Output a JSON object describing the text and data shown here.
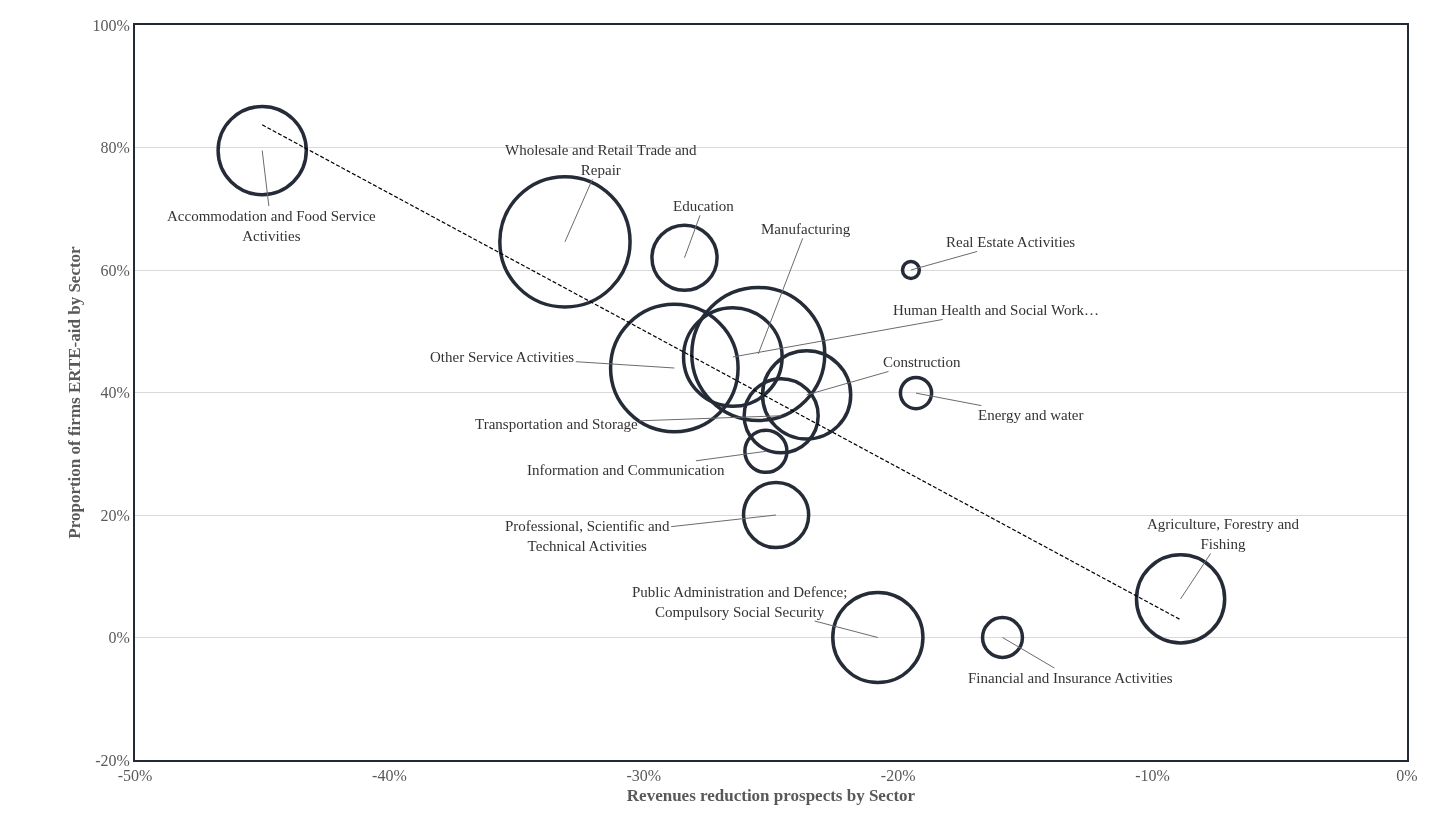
{
  "chart_data": {
    "type": "bubble",
    "xlabel": "Revenues reduction prospects by Sector",
    "ylabel": "Proportion of firms ERTE-aid by Sector",
    "x": [
      -45.0,
      -33.1,
      -28.4,
      -25.5,
      -19.5,
      -26.5,
      -28.8,
      -23.6,
      -24.6,
      -19.3,
      -25.2,
      -24.8,
      -20.8,
      -15.9,
      -8.9
    ],
    "series": [
      {
        "color": "#252c38",
        "values": [
          79.5,
          64.6,
          62.0,
          46.3,
          60.0,
          45.8,
          44.0,
          39.6,
          36.2,
          39.9,
          30.4,
          20.0,
          0.0,
          0.0,
          6.3
        ],
        "sizes": [
          0.44,
          0.96,
          0.24,
          1,
          0.016,
          0.55,
          0.92,
          0.44,
          0.31,
          0.055,
          0.1,
          0.24,
          0.46,
          0.09,
          0.44
        ]
      },
      {
        "type": "line",
        "x": [
          -45.0,
          -8.9
        ],
        "values": [
          83.7,
          2.9
        ],
        "color": "#000000",
        "line_style": "dashed"
      }
    ],
    "annotations": [
      {
        "text": "Accommodation and Food Service\nActivities",
        "x": -45.0,
        "y": 79.5
      },
      {
        "text": "Wholesale and Retail Trade and\nRepair",
        "x": -33.1,
        "y": 64.6
      },
      {
        "text": "Education",
        "x": -28.4,
        "y": 62.0
      },
      {
        "text": "Manufacturing",
        "x": -25.5,
        "y": 46.3
      },
      {
        "text": "Real Estate Activities",
        "x": -19.5,
        "y": 60.0
      },
      {
        "text": "Human Health and Social Work…",
        "x": -26.5,
        "y": 45.8
      },
      {
        "text": "Other Service Activities",
        "x": -28.8,
        "y": 44.0
      },
      {
        "text": "Construction",
        "x": -23.6,
        "y": 39.6
      },
      {
        "text": "Transportation and Storage",
        "x": -24.6,
        "y": 36.2
      },
      {
        "text": "Energy and water",
        "x": -19.3,
        "y": 39.9
      },
      {
        "text": "Information and Communication",
        "x": -25.2,
        "y": 30.4
      },
      {
        "text": "Professional, Scientific and\nTechnical Activities",
        "x": -24.8,
        "y": 20.0
      },
      {
        "text": "Public Administration and Defence;\nCompulsory Social Security",
        "x": -20.8,
        "y": 0.0
      },
      {
        "text": "Financial and Insurance Activities",
        "x": -15.9,
        "y": 0.0
      },
      {
        "text": "Agriculture, Forestry and\nFishing",
        "x": -8.9,
        "y": 6.3
      }
    ],
    "xlim": [
      -50,
      0
    ],
    "xticks": [
      {
        "value": -50,
        "label": "-50%"
      },
      {
        "value": -40,
        "label": "-40%"
      },
      {
        "value": -30,
        "label": "-30%"
      },
      {
        "value": -20,
        "label": "-20%"
      },
      {
        "value": -10,
        "label": "-10%"
      },
      {
        "value": 0,
        "label": "0%"
      }
    ],
    "ylim": [
      -20,
      100
    ],
    "yticks": [
      {
        "value": -20,
        "label": "-20%"
      },
      {
        "value": 0,
        "label": "0%"
      },
      {
        "value": 20,
        "label": "20%"
      },
      {
        "value": 40,
        "label": "40%"
      },
      {
        "value": 60,
        "label": "60%"
      },
      {
        "value": 80,
        "label": "80%"
      },
      {
        "value": 100,
        "label": "100%"
      }
    ],
    "grid": "y"
  }
}
